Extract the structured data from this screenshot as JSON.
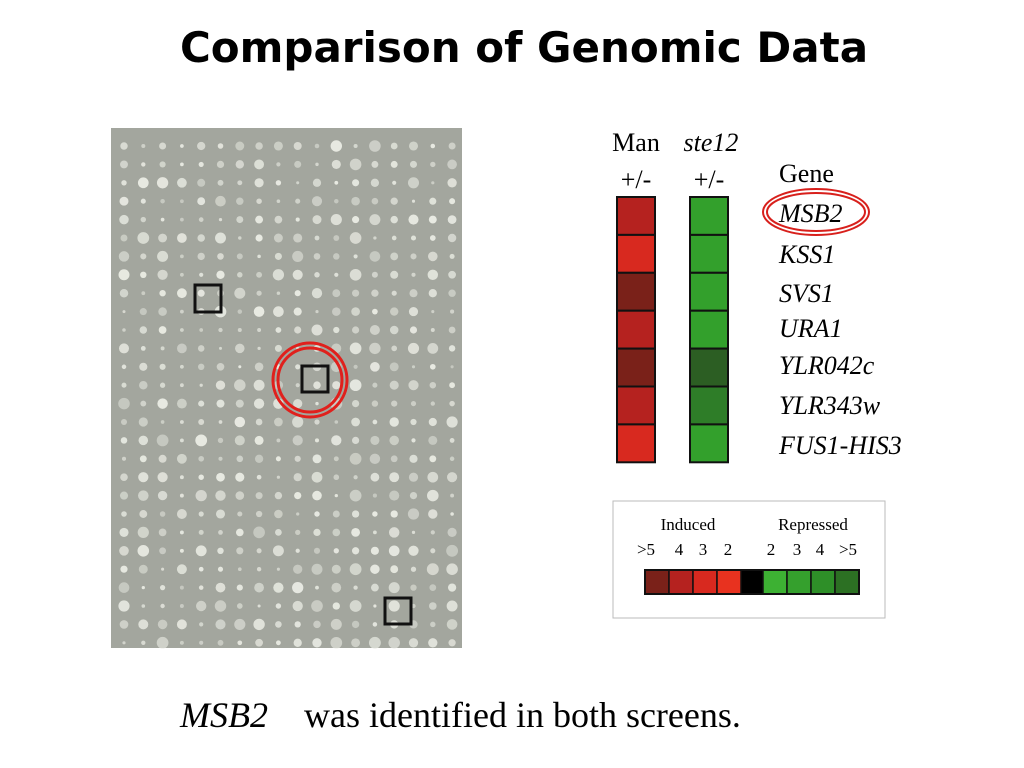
{
  "title": "Comparison of Genomic Data",
  "heatmap": {
    "columns": [
      {
        "name": "Man",
        "sub": "+/-",
        "colors": [
          "#b5221f",
          "#d8291f",
          "#7a2119",
          "#b5221f",
          "#7a2119",
          "#b5221f",
          "#d8291f"
        ]
      },
      {
        "name": "ste12",
        "sub": "+/-",
        "colors": [
          "#33a02c",
          "#33a02c",
          "#33a02c",
          "#33a02c",
          "#2c5e23",
          "#2e7d28",
          "#33a02c"
        ]
      }
    ],
    "gene_header": "Gene",
    "genes": [
      "MSB2",
      "KSS1",
      "SVS1",
      "URA1",
      "YLR042c",
      "YLR343w",
      "FUS1-HIS3"
    ]
  },
  "legend": {
    "induced": "Induced",
    "repressed": "Repressed",
    "labels": [
      ">5",
      "4",
      "3",
      "2",
      "2",
      "3",
      "4",
      ">5"
    ],
    "colors": [
      "#7a2119",
      "#b5221f",
      "#d8291f",
      "#e8321f",
      "#3db133",
      "#35a02d",
      "#2e8f28",
      "#2c7023"
    ],
    "center_color": "#000000"
  },
  "caption": {
    "gene": "MSB2",
    "text": "was identified in both screens."
  }
}
